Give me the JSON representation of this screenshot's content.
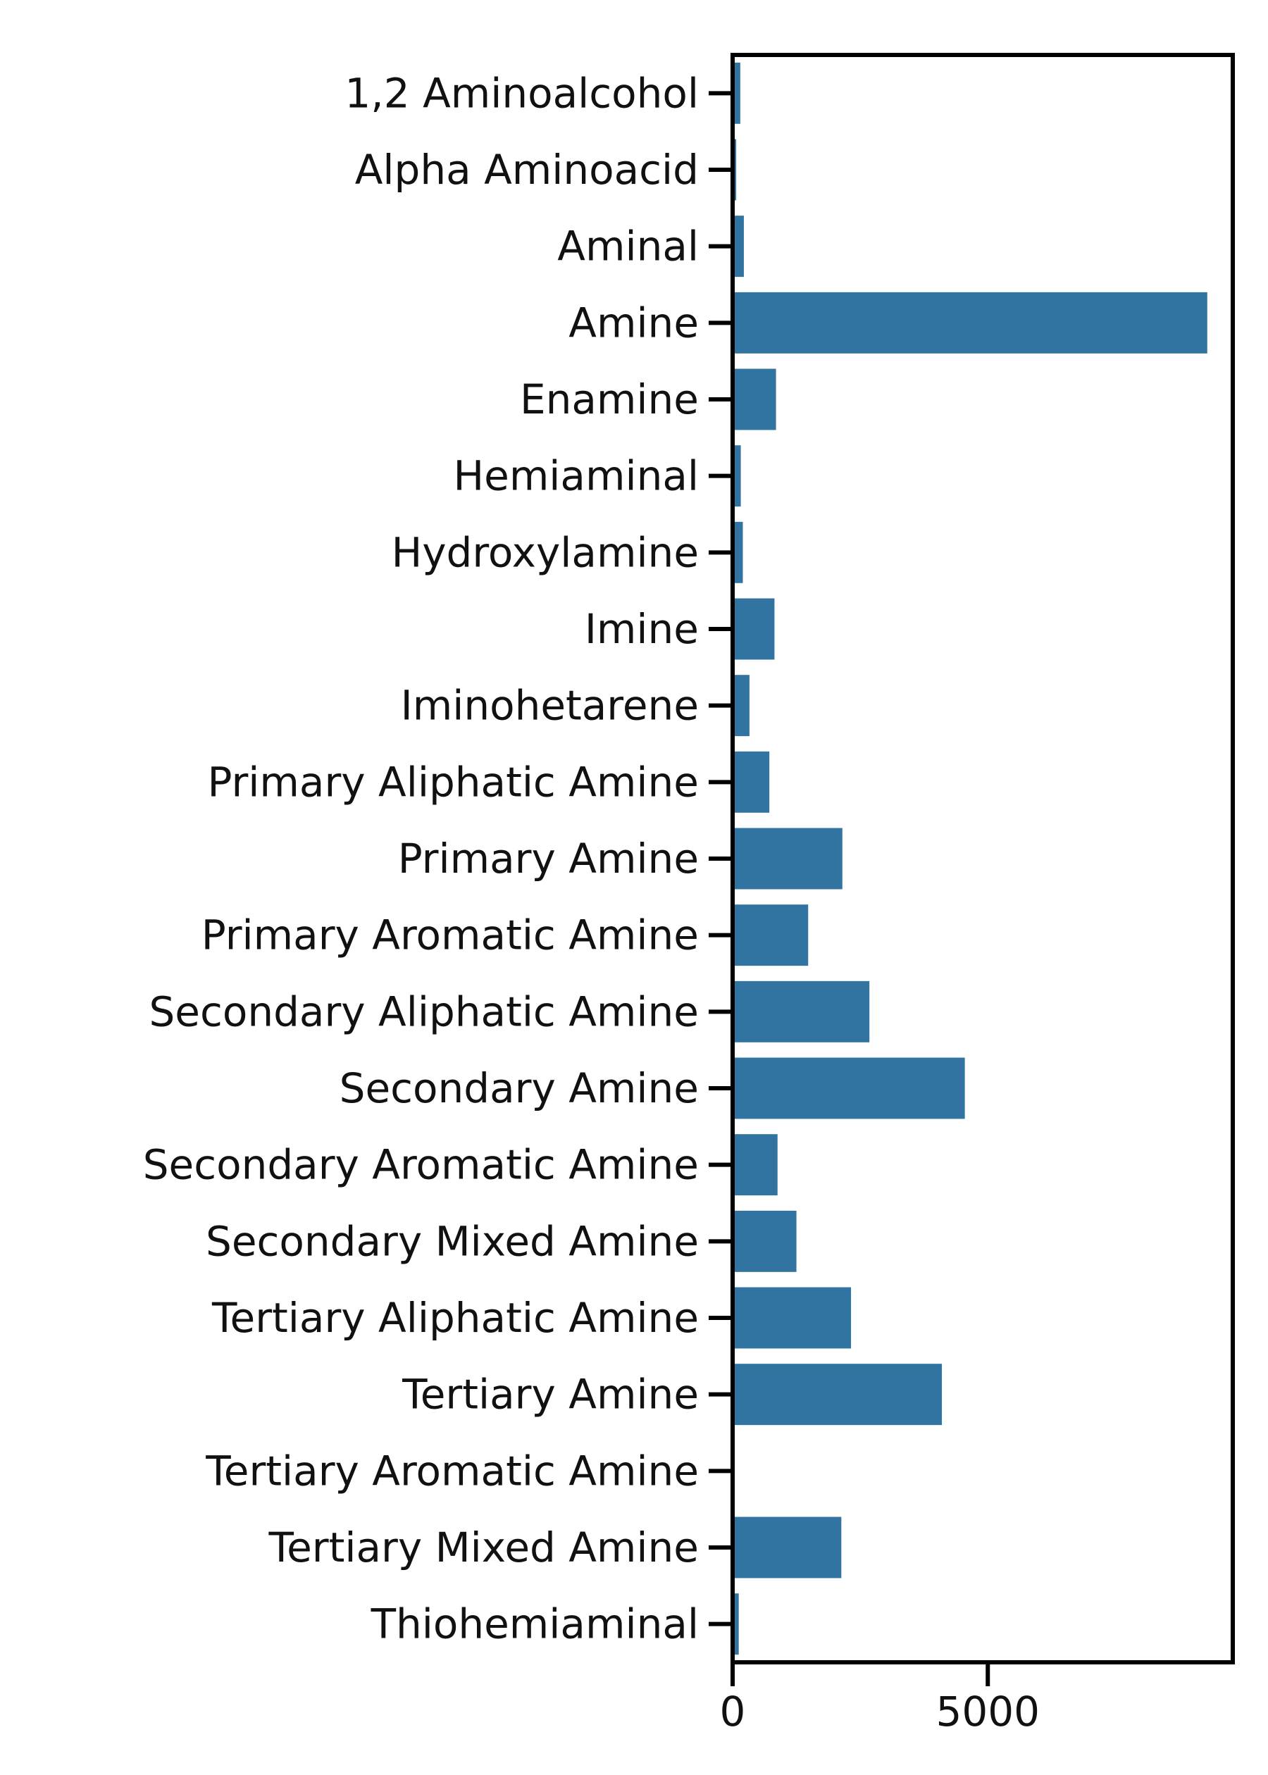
{
  "chart_data": {
    "type": "bar",
    "orientation": "horizontal",
    "title": "",
    "xlabel": "",
    "ylabel": "",
    "bar_color": "#3274a1",
    "categories": [
      "1,2 Aminoalcohol",
      "Alpha Aminoacid",
      "Aminal",
      "Amine",
      "Enamine",
      "Hemiaminal",
      "Hydroxylamine",
      "Imine",
      "Iminohetarene",
      "Primary Aliphatic Amine",
      "Primary Amine",
      "Primary Aromatic Amine",
      "Secondary Aliphatic Amine",
      "Secondary Amine",
      "Secondary Aromatic Amine",
      "Secondary Mixed Amine",
      "Tertiary Aliphatic Amine",
      "Tertiary Amine",
      "Tertiary Aromatic Amine",
      "Tertiary Mixed Amine",
      "Thiohemiaminal"
    ],
    "values": [
      150,
      70,
      220,
      9300,
      850,
      160,
      200,
      820,
      330,
      720,
      2150,
      1480,
      2680,
      4550,
      880,
      1250,
      2320,
      4100,
      0,
      2130,
      120
    ],
    "xlim": [
      0,
      9800
    ],
    "xticks": [
      0,
      5000
    ],
    "xtick_labels": [
      "0",
      "5000"
    ],
    "grid": false,
    "legend": "none"
  }
}
